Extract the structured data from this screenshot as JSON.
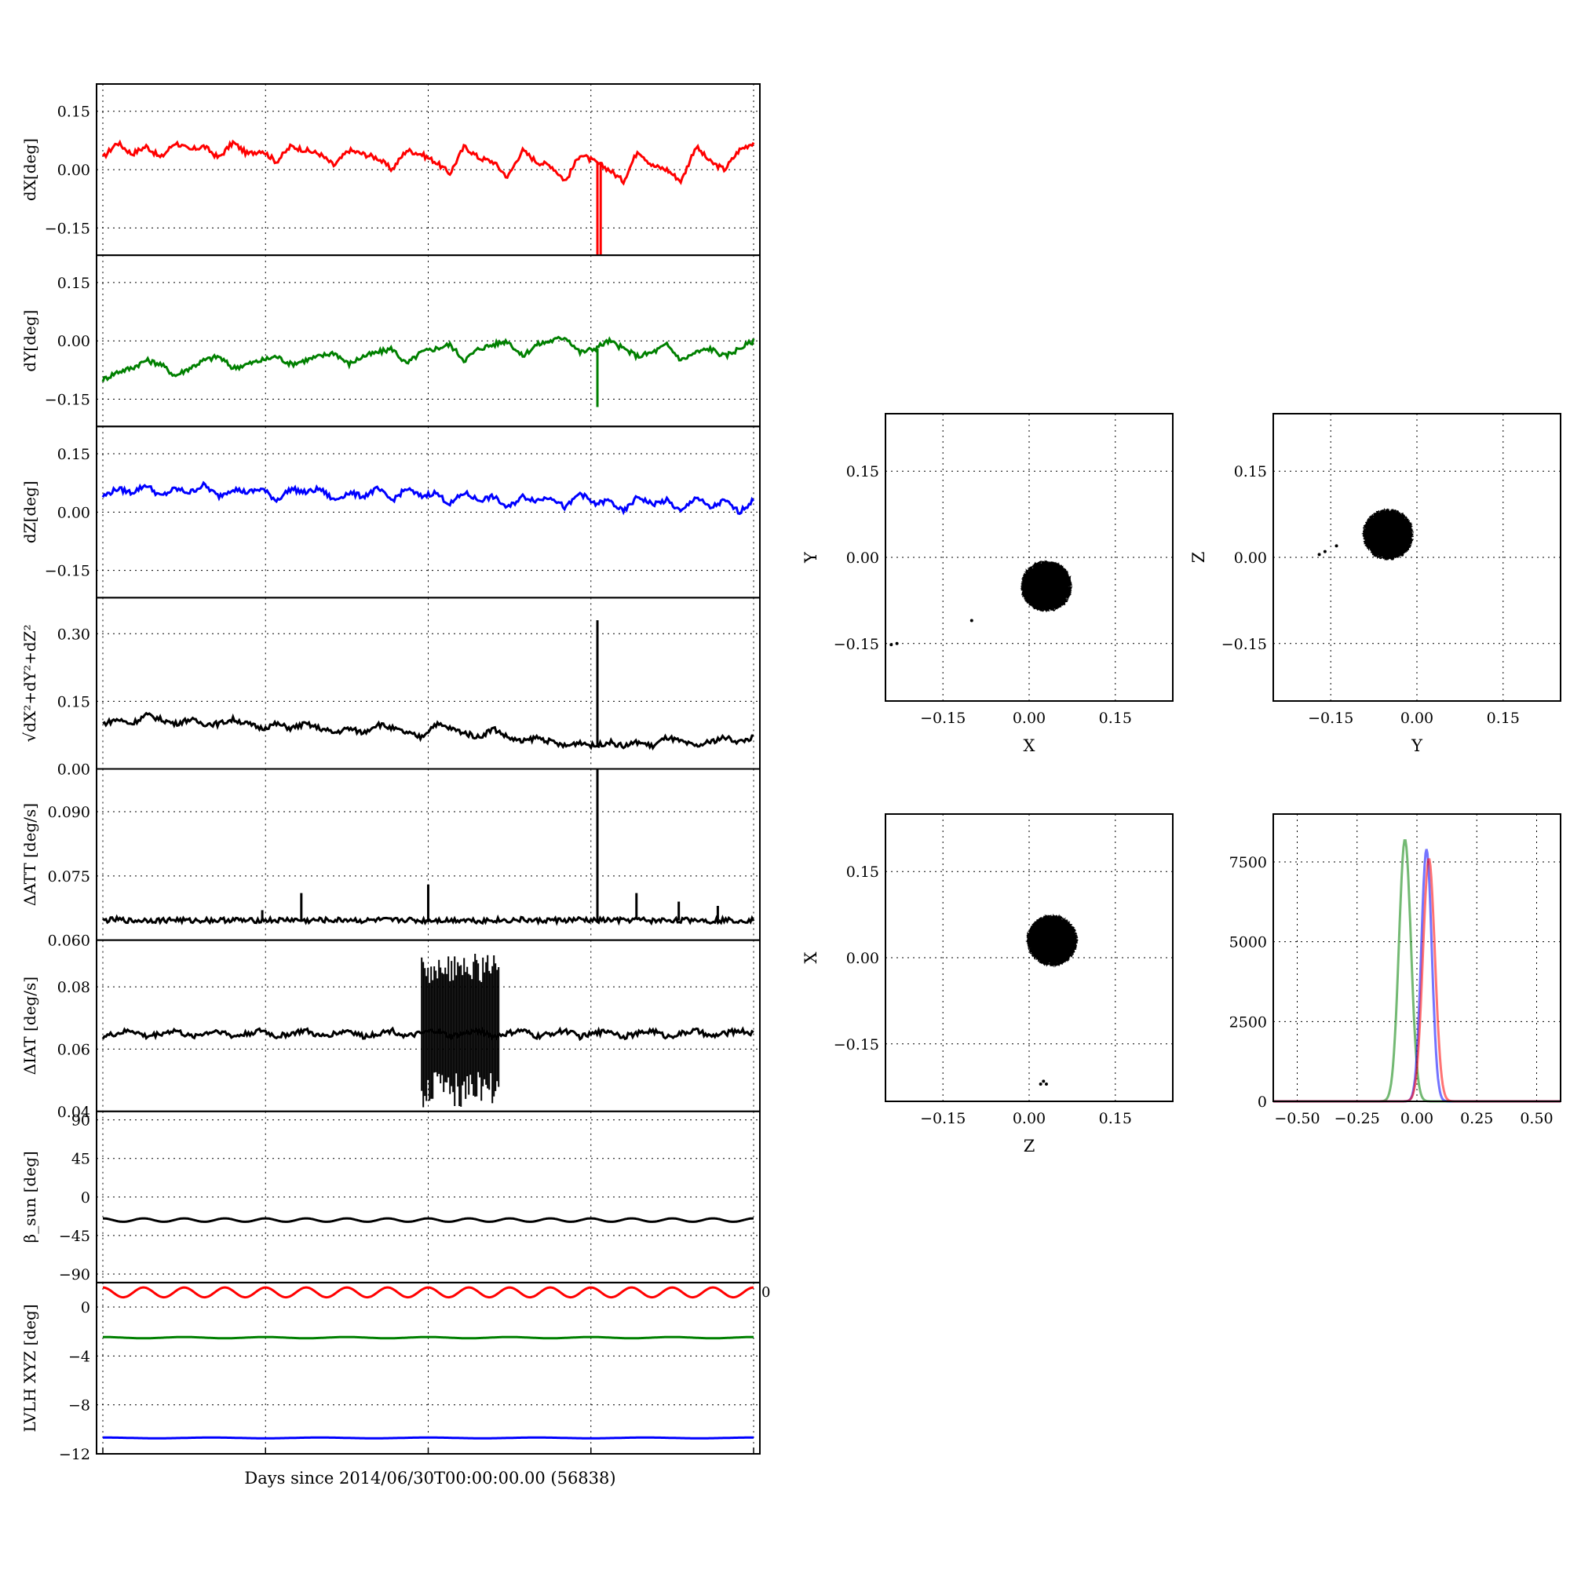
{
  "figure": {
    "xlabel_shared": "Days since 2014/06/30T00:00:00.00 (56838)"
  },
  "chart_data": [
    {
      "type": "line",
      "panel": "dx",
      "ylabel": "dX[deg]",
      "ylim": [
        -0.22,
        0.22
      ],
      "yticks": [
        0.15,
        0.0,
        -0.15
      ],
      "yticklabels": [
        "0.15",
        "0.00",
        "−0.15"
      ],
      "grid": true,
      "series": [
        {
          "color": "#ff0000",
          "values": [
            0.03,
            0.07,
            0.04,
            0.06,
            0.03,
            0.07,
            0.05,
            0.06,
            0.03,
            0.07,
            0.04,
            0.05,
            0.02,
            0.06,
            0.05,
            0.04,
            0.01,
            0.05,
            0.04,
            0.03,
            0.0,
            0.05,
            0.04,
            0.02,
            -0.01,
            0.06,
            0.03,
            0.02,
            -0.02,
            0.05,
            0.02,
            0.01,
            -0.03,
            0.04,
            0.02,
            0.0,
            -0.03,
            0.05,
            0.01,
            0.0,
            -0.03,
            0.06,
            0.02,
            0.0,
            0.05,
            0.07
          ]
        }
      ],
      "spikes": [
        {
          "x": 0.76,
          "value": -0.22
        },
        {
          "x": 0.765,
          "value": -0.22
        }
      ]
    },
    {
      "type": "line",
      "panel": "dy",
      "ylabel": "dY[deg]",
      "ylim": [
        -0.22,
        0.22
      ],
      "yticks": [
        0.15,
        0.0,
        -0.15
      ],
      "yticklabels": [
        "0.15",
        "0.00",
        "−0.15"
      ],
      "grid": true,
      "series": [
        {
          "color": "#008000",
          "values": [
            -0.1,
            -0.08,
            -0.07,
            -0.05,
            -0.06,
            -0.09,
            -0.07,
            -0.05,
            -0.04,
            -0.07,
            -0.06,
            -0.05,
            -0.04,
            -0.06,
            -0.05,
            -0.04,
            -0.03,
            -0.06,
            -0.04,
            -0.03,
            -0.02,
            -0.06,
            -0.03,
            -0.02,
            -0.01,
            -0.05,
            -0.02,
            -0.01,
            0.0,
            -0.04,
            -0.01,
            0.0,
            0.01,
            -0.03,
            -0.02,
            0.0,
            -0.02,
            -0.04,
            -0.03,
            -0.01,
            -0.05,
            -0.03,
            -0.02,
            -0.04,
            -0.02,
            0.0
          ]
        }
      ],
      "spikes": [
        {
          "x": 0.76,
          "value": -0.17
        }
      ]
    },
    {
      "type": "line",
      "panel": "dz",
      "ylabel": "dZ[deg]",
      "ylim": [
        -0.22,
        0.22
      ],
      "yticks": [
        0.15,
        0.0,
        -0.15
      ],
      "yticklabels": [
        "0.15",
        "0.00",
        "−0.15"
      ],
      "grid": true,
      "series": [
        {
          "color": "#0000ff",
          "values": [
            0.04,
            0.06,
            0.05,
            0.07,
            0.04,
            0.06,
            0.05,
            0.07,
            0.04,
            0.06,
            0.05,
            0.06,
            0.03,
            0.06,
            0.05,
            0.06,
            0.03,
            0.05,
            0.04,
            0.06,
            0.03,
            0.06,
            0.04,
            0.05,
            0.02,
            0.05,
            0.03,
            0.04,
            0.01,
            0.04,
            0.03,
            0.04,
            0.01,
            0.05,
            0.02,
            0.03,
            0.0,
            0.04,
            0.02,
            0.03,
            0.0,
            0.04,
            0.01,
            0.03,
            0.0,
            0.03
          ]
        }
      ],
      "spikes": []
    },
    {
      "type": "line",
      "panel": "mag",
      "ylabel": "√dX²+dY²+dZ²",
      "ylim": [
        0.0,
        0.38
      ],
      "yticks": [
        0.3,
        0.15,
        0.0
      ],
      "yticklabels": [
        "0.30",
        "0.15",
        "0.00"
      ],
      "grid": true,
      "series": [
        {
          "color": "#000000",
          "values": [
            0.1,
            0.11,
            0.1,
            0.12,
            0.11,
            0.1,
            0.11,
            0.1,
            0.1,
            0.11,
            0.1,
            0.09,
            0.1,
            0.09,
            0.1,
            0.09,
            0.08,
            0.09,
            0.08,
            0.1,
            0.09,
            0.08,
            0.07,
            0.1,
            0.09,
            0.08,
            0.07,
            0.09,
            0.07,
            0.06,
            0.07,
            0.06,
            0.05,
            0.06,
            0.05,
            0.06,
            0.05,
            0.06,
            0.05,
            0.07,
            0.06,
            0.05,
            0.06,
            0.07,
            0.06,
            0.07
          ]
        }
      ],
      "spikes": [
        {
          "x": 0.76,
          "value": 0.33
        }
      ]
    },
    {
      "type": "line",
      "panel": "datt",
      "ylabel": "ΔATT [deg/s]",
      "ylim": [
        0.06,
        0.1
      ],
      "yticks": [
        0.09,
        0.075,
        0.06
      ],
      "yticklabels": [
        "0.090",
        "0.075",
        "0.060"
      ],
      "grid": true,
      "series": [
        {
          "color": "#000000",
          "values": [
            0.0646,
            0.0648,
            0.0645,
            0.0647,
            0.0646,
            0.0648,
            0.0645,
            0.0647,
            0.0646,
            0.0648,
            0.0645,
            0.0647,
            0.0646,
            0.0648,
            0.0645,
            0.0647,
            0.0646,
            0.0648,
            0.0645,
            0.0647,
            0.0646,
            0.0648,
            0.0645,
            0.0647,
            0.0646,
            0.0648,
            0.0645,
            0.0647,
            0.0646,
            0.0648,
            0.0645,
            0.0647,
            0.0646,
            0.0648,
            0.0645,
            0.0647,
            0.0646,
            0.0648,
            0.0645,
            0.0647,
            0.0646,
            0.0648,
            0.0645,
            0.0647,
            0.0646,
            0.0647
          ]
        }
      ],
      "spikes": [
        {
          "x": 0.245,
          "value": 0.067
        },
        {
          "x": 0.305,
          "value": 0.071
        },
        {
          "x": 0.5,
          "value": 0.073
        },
        {
          "x": 0.76,
          "value": 0.1
        },
        {
          "x": 0.82,
          "value": 0.071
        },
        {
          "x": 0.885,
          "value": 0.069
        },
        {
          "x": 0.945,
          "value": 0.068
        }
      ]
    },
    {
      "type": "line",
      "panel": "diat",
      "ylabel": "ΔIAT [deg/s]",
      "ylim": [
        0.04,
        0.095
      ],
      "yticks": [
        0.08,
        0.06,
        0.04
      ],
      "yticklabels": [
        "0.08",
        "0.06",
        "0.04"
      ],
      "grid": true,
      "series": [
        {
          "color": "#000000",
          "values": [
            0.064,
            0.065,
            0.066,
            0.064,
            0.065,
            0.066,
            0.064,
            0.065,
            0.066,
            0.064,
            0.065,
            0.066,
            0.064,
            0.065,
            0.066,
            0.064,
            0.065,
            0.066,
            0.064,
            0.065,
            0.066,
            0.064,
            0.065,
            0.066,
            0.064,
            0.065,
            0.066,
            0.064,
            0.065,
            0.066,
            0.064,
            0.065,
            0.066,
            0.064,
            0.065,
            0.066,
            0.064,
            0.065,
            0.066,
            0.064,
            0.065,
            0.066,
            0.064,
            0.065,
            0.066,
            0.065
          ]
        }
      ],
      "bands": [
        {
          "x0": 0.49,
          "x1": 0.61,
          "low": 0.041,
          "high": 0.091
        }
      ]
    },
    {
      "type": "line",
      "panel": "beta",
      "ylabel": "β_sun [deg]",
      "ylim": [
        -100,
        100
      ],
      "yticks": [
        90,
        45,
        0,
        -45,
        -90
      ],
      "yticklabels": [
        "90",
        "45",
        "0",
        "−45",
        "−90"
      ],
      "grid": true,
      "series": [
        {
          "color": "#000000",
          "mean": -27,
          "amplitude": 2,
          "cycles": 16
        }
      ]
    },
    {
      "type": "line",
      "panel": "lvlh",
      "ylabel": "LVLH XYZ [deg]",
      "ylim": [
        -12,
        2
      ],
      "yticks": [
        0,
        -4,
        -8,
        -12
      ],
      "yticklabels": [
        "0",
        "−4",
        "−8",
        "−12"
      ],
      "edge_label": "0",
      "grid": true,
      "series": [
        {
          "color": "#ff0000",
          "mean": 1.2,
          "amplitude": 0.4,
          "cycles": 16
        },
        {
          "color": "#008000",
          "mean": -2.5,
          "amplitude": 0.05,
          "cycles": 8
        },
        {
          "color": "#0000ff",
          "mean": -10.7,
          "amplitude": 0.03,
          "cycles": 6
        }
      ]
    },
    {
      "type": "scatter",
      "panel": "xy",
      "xlabel": "X",
      "ylabel": "Y",
      "xlim": [
        -0.25,
        0.25
      ],
      "ylim": [
        -0.25,
        0.25
      ],
      "xticks": [
        -0.15,
        0.0,
        0.15
      ],
      "xticklabels": [
        "−0.15",
        "0.00",
        "0.15"
      ],
      "yticks": [
        0.15,
        0.0,
        -0.15
      ],
      "yticklabels": [
        "0.15",
        "0.00",
        "−0.15"
      ],
      "cluster": {
        "cx": 0.03,
        "cy": -0.05,
        "rx": 0.045,
        "ry": 0.045
      },
      "outliers": [
        [
          -0.23,
          -0.15
        ],
        [
          -0.24,
          -0.152
        ],
        [
          -0.1,
          -0.11
        ]
      ]
    },
    {
      "type": "scatter",
      "panel": "yz",
      "xlabel": "Y",
      "ylabel": "Z",
      "xlim": [
        -0.25,
        0.25
      ],
      "ylim": [
        -0.25,
        0.25
      ],
      "xticks": [
        -0.15,
        0.0,
        0.15
      ],
      "xticklabels": [
        "−0.15",
        "0.00",
        "0.15"
      ],
      "yticks": [
        0.15,
        0.0,
        -0.15
      ],
      "yticklabels": [
        "0.15",
        "0.00",
        "−0.15"
      ],
      "cluster": {
        "cx": -0.05,
        "cy": 0.04,
        "rx": 0.045,
        "ry": 0.045
      },
      "outliers": [
        [
          -0.16,
          0.01
        ],
        [
          -0.17,
          0.005
        ],
        [
          -0.14,
          0.02
        ]
      ]
    },
    {
      "type": "scatter",
      "panel": "zx",
      "xlabel": "Z",
      "ylabel": "X",
      "xlim": [
        -0.25,
        0.25
      ],
      "ylim": [
        -0.25,
        0.25
      ],
      "xticks": [
        -0.15,
        0.0,
        0.15
      ],
      "xticklabels": [
        "−0.15",
        "0.00",
        "0.15"
      ],
      "yticks": [
        0.15,
        0.0,
        -0.15
      ],
      "yticklabels": [
        "0.15",
        "0.00",
        "−0.15"
      ],
      "cluster": {
        "cx": 0.04,
        "cy": 0.03,
        "rx": 0.045,
        "ry": 0.045
      },
      "outliers": [
        [
          0.02,
          -0.22
        ],
        [
          0.025,
          -0.215
        ],
        [
          0.03,
          -0.22
        ]
      ]
    },
    {
      "type": "histogram",
      "panel": "hist",
      "xlim": [
        -0.6,
        0.6
      ],
      "ylim": [
        0,
        9000
      ],
      "xticks": [
        -0.5,
        -0.25,
        0.0,
        0.25,
        0.5
      ],
      "xticklabels": [
        "−0.50",
        "−0.25",
        "0.00",
        "0.25",
        "0.50"
      ],
      "yticks": [
        7500,
        5000,
        2500,
        0
      ],
      "yticklabels": [
        "7500",
        "5000",
        "2500",
        "0"
      ],
      "series": [
        {
          "color": "#008000",
          "peak_x": -0.05,
          "peak": 8200,
          "width": 0.025
        },
        {
          "color": "#0000ff",
          "peak_x": 0.04,
          "peak": 7900,
          "width": 0.022
        },
        {
          "color": "#ff0000",
          "peak_x": 0.05,
          "peak": 7600,
          "width": 0.025
        }
      ]
    }
  ]
}
